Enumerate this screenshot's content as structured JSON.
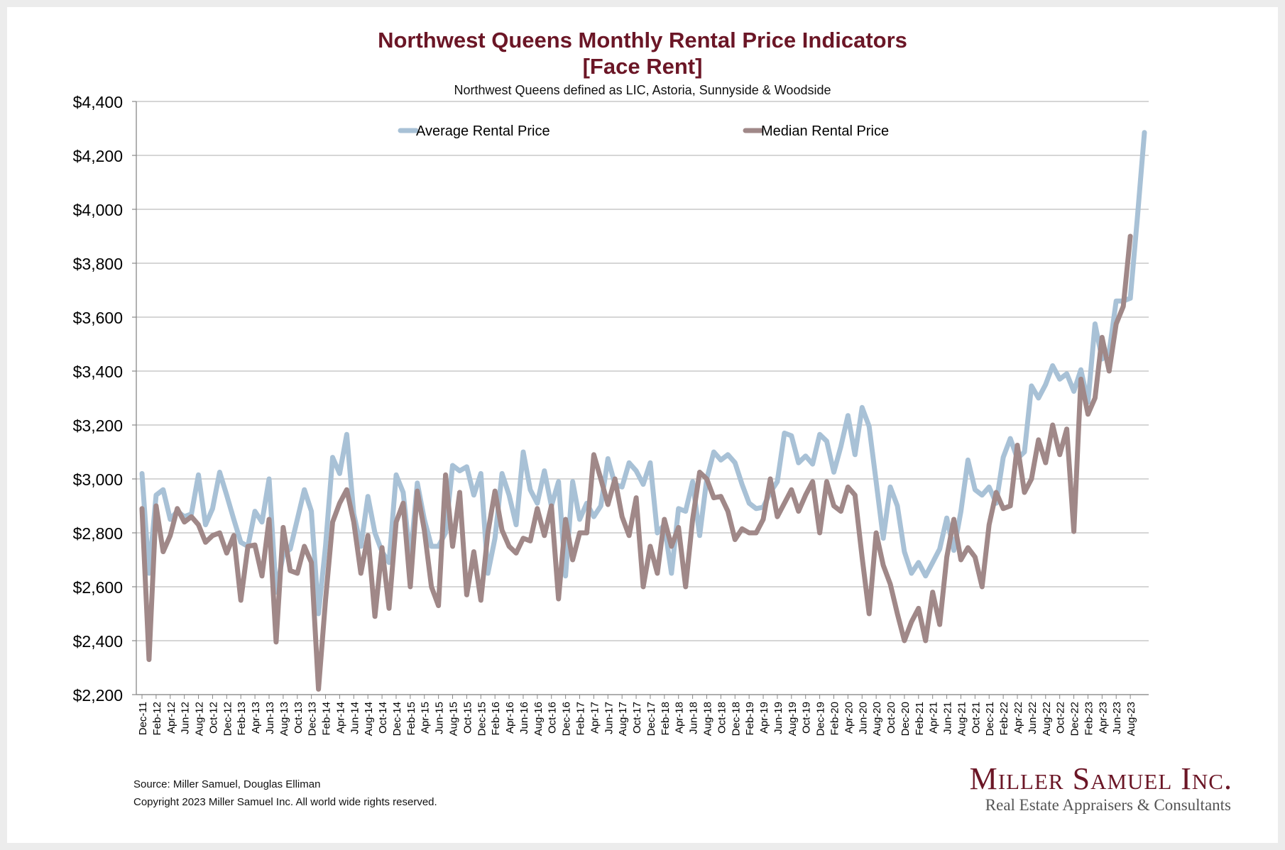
{
  "title_line1": "Northwest Queens Monthly Rental Price Indicators",
  "title_line2": "[Face Rent]",
  "subtitle": "Northwest Queens defined as LIC, Astoria, Sunnyside & Woodside",
  "source": "Source: Miller Samuel, Douglas Elliman",
  "copyright": "Copyright 2023 Miller Samuel Inc.  All world wide rights reserved.",
  "logo_name": "Miller Samuel Inc.",
  "logo_tagline": "Real Estate Appraisers & Consultants",
  "colors": {
    "average": "#a8c1d6",
    "median": "#a08888",
    "title": "#6b1626",
    "grid": "#bdbdbd"
  },
  "chart_data": {
    "type": "line",
    "title": "Northwest Queens Monthly Rental Price Indicators [Face Rent]",
    "ylim": [
      2200,
      4400
    ],
    "ytick_step": 200,
    "y_tick_format": "currency",
    "grid": true,
    "legend": "top",
    "x_start": "2011-12",
    "x_label_every": 2,
    "x_labels": [
      "Dec-11",
      "Feb-12",
      "Apr-12",
      "Jun-12",
      "Aug-12",
      "Oct-12",
      "Dec-12",
      "Feb-13",
      "Apr-13",
      "Jun-13",
      "Aug-13",
      "Oct-13",
      "Dec-13",
      "Feb-14",
      "Apr-14",
      "Jun-14",
      "Aug-14",
      "Oct-14",
      "Dec-14",
      "Feb-15",
      "Apr-15",
      "Jun-15",
      "Aug-15",
      "Oct-15",
      "Dec-15",
      "Feb-16",
      "Apr-16",
      "Jun-16",
      "Aug-16",
      "Oct-16",
      "Dec-16",
      "Feb-17",
      "Apr-17",
      "Jun-17",
      "Aug-17",
      "Oct-17",
      "Dec-17",
      "Feb-18",
      "Apr-18",
      "Jun-18",
      "Aug-18",
      "Oct-18",
      "Dec-18",
      "Feb-19",
      "Apr-19",
      "Jun-19",
      "Aug-19",
      "Oct-19",
      "Dec-19",
      "Feb-20",
      "Apr-20",
      "Jun-20",
      "Aug-20",
      "Oct-20",
      "Dec-20",
      "Feb-21",
      "Apr-21",
      "Jun-21",
      "Aug-21",
      "Oct-21",
      "Dec-21",
      "Feb-22",
      "Apr-22",
      "Jun-22",
      "Aug-22",
      "Oct-22",
      "Dec-22",
      "Feb-23",
      "Apr-23",
      "Jun-23",
      "Aug-23"
    ],
    "series": [
      {
        "name": "Average Rental Price",
        "values": [
          3020,
          2650,
          2940,
          2960,
          2850,
          2880,
          2860,
          2870,
          3015,
          2830,
          2890,
          3025,
          2940,
          2850,
          2765,
          2750,
          2880,
          2840,
          3000,
          2580,
          2720,
          2740,
          2850,
          2960,
          2880,
          2500,
          2750,
          3080,
          3020,
          3165,
          2870,
          2750,
          2935,
          2800,
          2730,
          2690,
          3015,
          2950,
          2700,
          2985,
          2850,
          2750,
          2750,
          2800,
          3050,
          3030,
          3045,
          2940,
          3020,
          2650,
          2780,
          3020,
          2940,
          2830,
          3100,
          2960,
          2910,
          3030,
          2900,
          2990,
          2640,
          2990,
          2850,
          2910,
          2860,
          2900,
          3075,
          2980,
          2970,
          3060,
          3030,
          2980,
          3060,
          2800,
          2830,
          2650,
          2890,
          2880,
          2990,
          2790,
          3000,
          3100,
          3070,
          3090,
          3060,
          2980,
          2910,
          2890,
          2895,
          2950,
          2990,
          3170,
          3160,
          3060,
          3085,
          3055,
          3165,
          3140,
          3025,
          3120,
          3235,
          3090,
          3265,
          3195,
          2990,
          2780,
          2970,
          2900,
          2730,
          2650,
          2690,
          2640,
          2690,
          2740,
          2855,
          2735,
          2880,
          3070,
          2960,
          2940,
          2970,
          2910,
          3080,
          3150,
          3075,
          3100,
          3345,
          3300,
          3350,
          3420,
          3370,
          3390,
          3325,
          3405,
          3285,
          3575,
          3445,
          3470,
          3660,
          3660,
          3670,
          3970,
          4285
        ]
      },
      {
        "name": "Median Rental Price",
        "values": [
          2890,
          2330,
          2900,
          2730,
          2790,
          2890,
          2840,
          2860,
          2830,
          2765,
          2790,
          2800,
          2725,
          2790,
          2550,
          2750,
          2755,
          2640,
          2850,
          2395,
          2820,
          2660,
          2650,
          2750,
          2690,
          2220,
          2550,
          2840,
          2910,
          2960,
          2840,
          2650,
          2790,
          2490,
          2745,
          2520,
          2840,
          2910,
          2600,
          2955,
          2810,
          2600,
          2530,
          3015,
          2750,
          2950,
          2570,
          2730,
          2550,
          2800,
          2955,
          2810,
          2750,
          2725,
          2780,
          2770,
          2890,
          2790,
          2900,
          2555,
          2850,
          2700,
          2800,
          2800,
          3090,
          3000,
          2905,
          3000,
          2860,
          2790,
          2930,
          2600,
          2750,
          2650,
          2850,
          2750,
          2820,
          2600,
          2850,
          3025,
          3000,
          2930,
          2935,
          2880,
          2775,
          2815,
          2800,
          2800,
          2850,
          3000,
          2860,
          2910,
          2960,
          2880,
          2940,
          2990,
          2800,
          2990,
          2900,
          2880,
          2970,
          2940,
          2710,
          2500,
          2800,
          2680,
          2610,
          2500,
          2400,
          2470,
          2520,
          2400,
          2580,
          2460,
          2710,
          2850,
          2700,
          2745,
          2710,
          2600,
          2830,
          2950,
          2890,
          2900,
          3125,
          2950,
          3000,
          3145,
          3060,
          3200,
          3090,
          3185,
          2805,
          3370,
          3240,
          3300,
          3525,
          3400,
          3575,
          3640,
          3900
        ]
      }
    ]
  }
}
